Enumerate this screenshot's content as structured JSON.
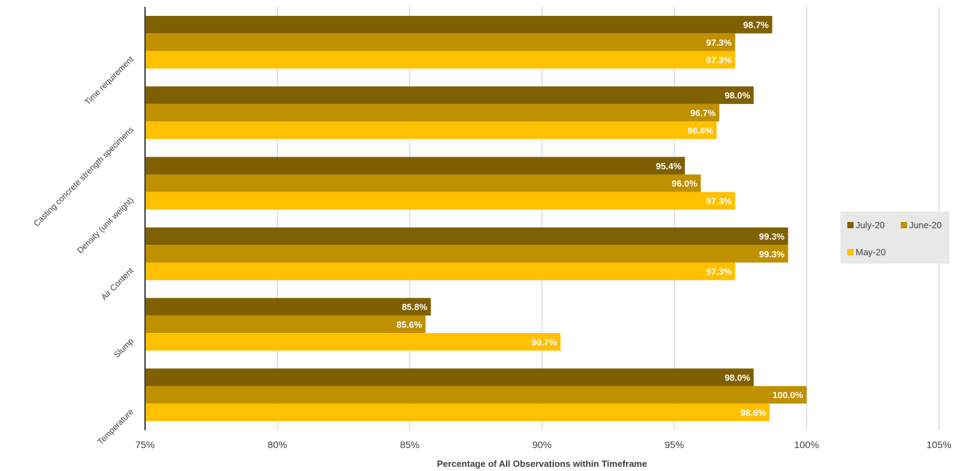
{
  "chart_data": {
    "type": "bar",
    "orientation": "horizontal",
    "categories": [
      "Time requirement",
      "Casting concrete strength specimens",
      "Density (unit weight)",
      "Air Content",
      "Slump",
      "Temperature"
    ],
    "series": [
      {
        "name": "July-20",
        "color": "#7f6000",
        "values": [
          98.7,
          98.0,
          95.4,
          99.3,
          85.8,
          98.0
        ],
        "labels": [
          "98.7%",
          "98.0%",
          "95.4%",
          "99.3%",
          "85.8%",
          "98.0%"
        ]
      },
      {
        "name": "June-20",
        "color": "#bf9000",
        "values": [
          97.3,
          96.7,
          96.0,
          99.3,
          85.6,
          100.0
        ],
        "labels": [
          "97.3%",
          "96.7%",
          "96.0%",
          "99.3%",
          "85.6%",
          "100.0%"
        ]
      },
      {
        "name": "May-20",
        "color": "#ffc000",
        "values": [
          97.3,
          96.6,
          97.3,
          97.3,
          90.7,
          98.6
        ],
        "labels": [
          "97.3%",
          "96.6%",
          "97.3%",
          "97.3%",
          "90.7%",
          "98.6%"
        ]
      }
    ],
    "xlabel": "Percentage of All Observations within Timeframe",
    "xlim": [
      75,
      105
    ],
    "xticks": [
      75,
      80,
      85,
      90,
      95,
      100,
      105
    ],
    "xtick_labels": [
      "75%",
      "80%",
      "85%",
      "90%",
      "95%",
      "100%",
      "105%"
    ],
    "grid": "vertical",
    "legend_position": "right"
  }
}
